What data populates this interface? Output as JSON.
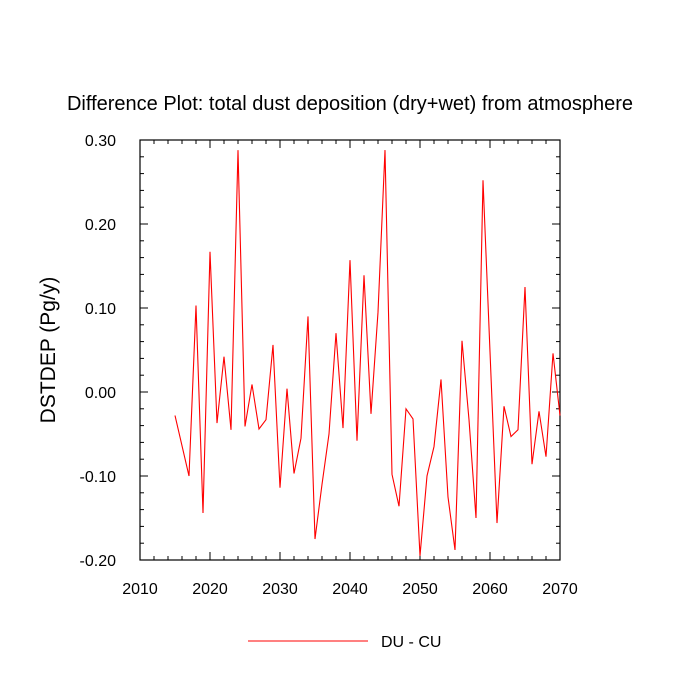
{
  "chart_data": {
    "type": "line",
    "title": "Difference Plot: total dust deposition (dry+wet) from atmosphere",
    "xlabel": "",
    "ylabel": "DSTDEP  (Pg/y)",
    "xlim": [
      2010,
      2070
    ],
    "ylim": [
      -0.2,
      0.3
    ],
    "x_ticks": [
      2010,
      2020,
      2030,
      2040,
      2050,
      2060,
      2070
    ],
    "y_ticks": [
      -0.2,
      -0.1,
      0.0,
      0.1,
      0.2,
      0.3
    ],
    "x_tick_labels": [
      "2010",
      "2020",
      "2030",
      "2040",
      "2050",
      "2060",
      "2070"
    ],
    "y_tick_labels": [
      "-0.20",
      "-0.10",
      "0.00",
      "0.10",
      "0.20",
      "0.30"
    ],
    "grid": false,
    "legend_position": "bottom-center",
    "series": [
      {
        "name": "DU - CU",
        "color": "#ff0000",
        "x": [
          2015,
          2016,
          2017,
          2018,
          2019,
          2020,
          2021,
          2022,
          2023,
          2024,
          2025,
          2026,
          2027,
          2028,
          2029,
          2030,
          2031,
          2032,
          2033,
          2034,
          2035,
          2036,
          2037,
          2038,
          2039,
          2040,
          2041,
          2042,
          2043,
          2044,
          2045,
          2046,
          2047,
          2048,
          2049,
          2050,
          2051,
          2052,
          2053,
          2054,
          2055,
          2056,
          2057,
          2058,
          2059,
          2060,
          2061,
          2062,
          2063,
          2064,
          2065,
          2066,
          2067,
          2068,
          2069,
          2070
        ],
        "values": [
          -0.028,
          -0.064,
          -0.1,
          0.103,
          -0.144,
          0.167,
          -0.037,
          0.042,
          -0.045,
          0.288,
          -0.041,
          0.009,
          -0.044,
          -0.033,
          0.056,
          -0.114,
          0.004,
          -0.097,
          -0.055,
          0.09,
          -0.175,
          -0.11,
          -0.05,
          0.07,
          -0.043,
          0.157,
          -0.058,
          0.139,
          -0.026,
          0.095,
          0.288,
          -0.098,
          -0.136,
          -0.02,
          -0.032,
          -0.195,
          -0.1,
          -0.065,
          0.015,
          -0.125,
          -0.188,
          0.061,
          -0.033,
          -0.15,
          0.252,
          0.048,
          -0.156,
          -0.017,
          -0.053,
          -0.045,
          0.125,
          -0.086,
          -0.023,
          -0.077,
          0.046,
          -0.028
        ]
      }
    ]
  }
}
